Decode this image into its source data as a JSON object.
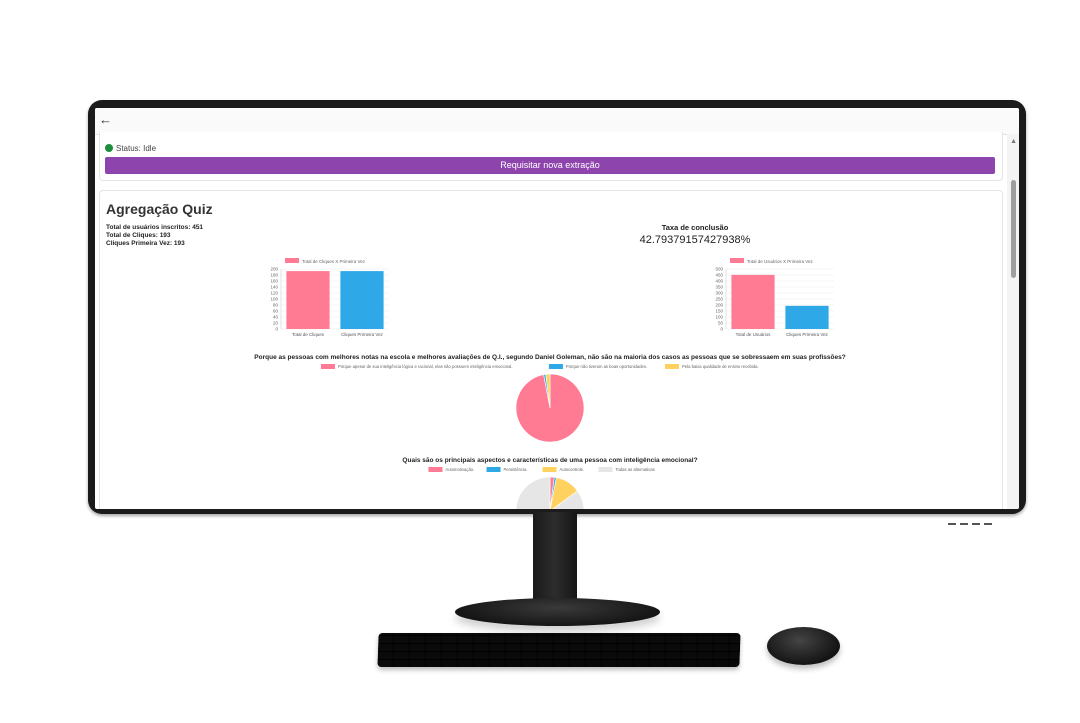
{
  "colors": {
    "purple": "#8d44ad",
    "pink": "#ff7b94",
    "blue": "#2ea8e6",
    "yellow": "#ffd25f",
    "grey": "#e6e6e6",
    "status_green": "#1e8e3e"
  },
  "app": {
    "back_icon": "arrow-left-icon"
  },
  "status": {
    "text": "Status: Idle"
  },
  "extract_button": {
    "label": "Requisitar nova extração"
  },
  "quiz": {
    "title": "Agregação Quiz",
    "stats": [
      "Total de usuários inscritos: 451",
      "Total de Cliques: 193",
      "Cliques Primeira Vez: 193"
    ],
    "rate_label": "Taxa de conclusão",
    "rate_value": "42.79379157427938%"
  },
  "chart_data": [
    {
      "type": "bar",
      "legend": "Total de Cliques X Primeira Vez",
      "categories": [
        "Total de Cliques",
        "Cliques Primeira Vez"
      ],
      "values": [
        193,
        193
      ],
      "colors": [
        "#ff7b94",
        "#2ea8e6"
      ],
      "yticks": [
        "0",
        "20",
        "40",
        "60",
        "80",
        "100",
        "120",
        "140",
        "160",
        "180",
        "200"
      ],
      "ylim": [
        0,
        200
      ]
    },
    {
      "type": "bar",
      "legend": "Total de Usuários X Primeira Vez",
      "categories": [
        "Total de Usuários",
        "Cliques Primeira Vez"
      ],
      "values": [
        451,
        193
      ],
      "colors": [
        "#ff7b94",
        "#2ea8e6"
      ],
      "yticks": [
        "0",
        "50",
        "100",
        "150",
        "200",
        "250",
        "300",
        "350",
        "400",
        "450",
        "500"
      ],
      "ylim": [
        0,
        500
      ]
    },
    {
      "type": "pie",
      "title": "Porque as pessoas com melhores notas na escola e melhores avaliações de Q.I., segundo Daniel Goleman, não são na maioria dos casos as pessoas que se sobressaem em suas profissões?",
      "labels": [
        "Porque apesar de sua inteligência lógica e racional, elas não possuem inteligência emocional.",
        "Porque não tiveram as boas oportunidades.",
        "Pela baixa qualidade de ensino recebida."
      ],
      "values": [
        97,
        1,
        2
      ],
      "colors": [
        "#ff7b94",
        "#2ea8e6",
        "#ffd25f"
      ]
    },
    {
      "type": "pie",
      "title": "Quais são os principais aspectos e características de uma pessoa com inteligência emocional?",
      "labels": [
        "Automotivação.",
        "Persistência.",
        "Autocontrole.",
        "Todas as alternativas"
      ],
      "values": [
        2,
        1,
        12,
        85
      ],
      "colors": [
        "#ff7b94",
        "#2ea8e6",
        "#ffd25f",
        "#e6e6e6"
      ]
    }
  ]
}
